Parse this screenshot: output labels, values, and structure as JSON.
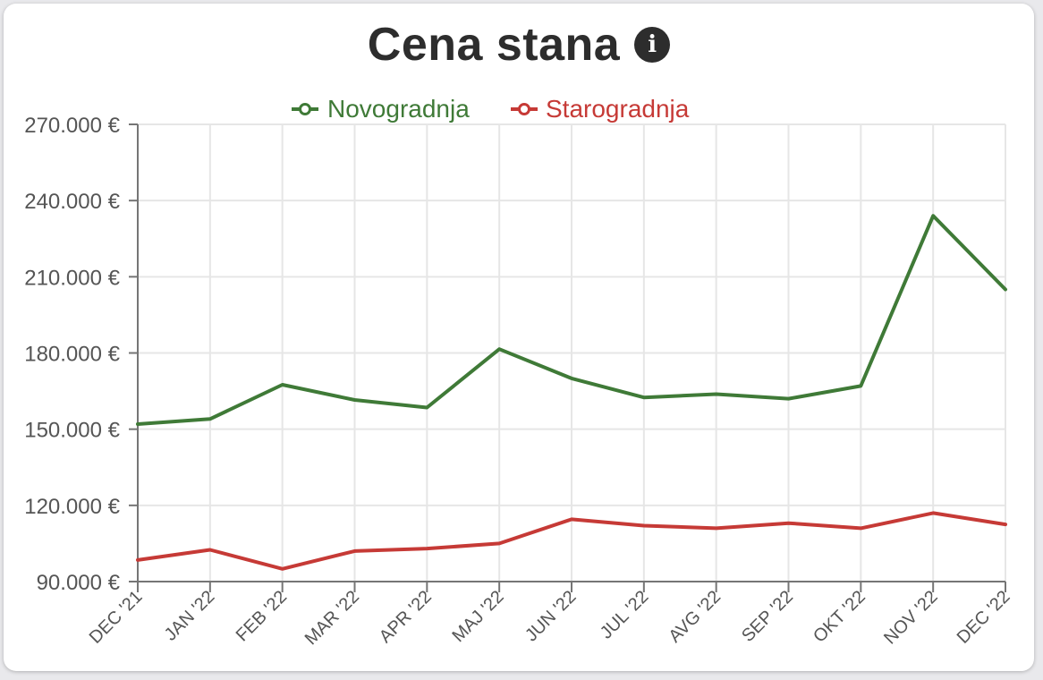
{
  "title": "Cena stana",
  "icons": {
    "info": "info-icon"
  },
  "colors": {
    "Novogradnja": "#3f7a37",
    "Starogradnja": "#c63a36"
  },
  "chart_data": {
    "type": "line",
    "title": "Cena stana",
    "categories": [
      "DEC '21",
      "JAN '22",
      "FEB '22",
      "MAR '22",
      "APR '22",
      "MAJ '22",
      "JUN '22",
      "JUL '22",
      "AVG '22",
      "SEP '22",
      "OKT '22",
      "NOV '22",
      "DEC '22"
    ],
    "series": [
      {
        "name": "Novogradnja",
        "values": [
          152000,
          154000,
          167500,
          161500,
          158500,
          181500,
          170000,
          162500,
          163800,
          162000,
          167000,
          234000,
          205000
        ]
      },
      {
        "name": "Starogradnja",
        "values": [
          98500,
          102500,
          95000,
          102000,
          103000,
          105000,
          114500,
          112000,
          111000,
          113000,
          111000,
          117000,
          112500
        ]
      }
    ],
    "ylim": [
      90000,
      270000
    ],
    "yticks": [
      90000,
      120000,
      150000,
      180000,
      210000,
      240000,
      270000
    ],
    "ytick_labels": [
      "90.000 €",
      "120.000 €",
      "150.000 €",
      "180.000 €",
      "210.000 €",
      "240.000 €",
      "270.000 €"
    ],
    "xlabel": "",
    "ylabel": "",
    "grid": true,
    "legend": "top-center"
  }
}
